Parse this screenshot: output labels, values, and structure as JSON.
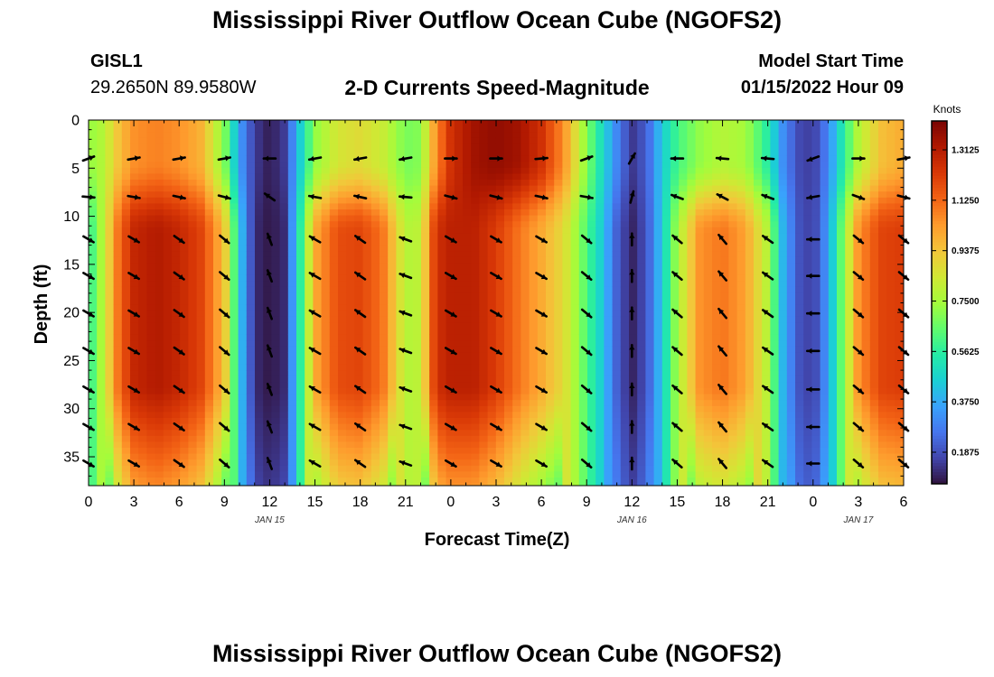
{
  "header": {
    "title": "Mississippi River Outflow Ocean Cube (NGOFS2)",
    "station_id": "GISL1",
    "station_coords": "29.2650N  89.9580W",
    "subtitle": "2-D Currents Speed-Magnitude",
    "model_start_label": "Model Start Time",
    "model_start_value": "01/15/2022 Hour 09",
    "footer_title": "Mississippi River Outflow Ocean Cube (NGOFS2)"
  },
  "colors": {
    "palette": [
      "#30123b",
      "#4145ab",
      "#4675ed",
      "#39a2fc",
      "#1bcfd4",
      "#24eca6",
      "#61fc6c",
      "#a4fc3b",
      "#d1e834",
      "#f3c63a",
      "#fe9b2d",
      "#f36315",
      "#d93806",
      "#b11901",
      "#7a0402"
    ]
  },
  "chart_data": {
    "type": "heatmap",
    "xlabel": "Forecast Time(Z)",
    "ylabel": "Depth (ft)",
    "colorbar_label": "Knots",
    "x_range_hours": [
      0,
      54
    ],
    "y_range_ft": [
      0,
      38
    ],
    "y_inverted": true,
    "x_ticks": [
      {
        "hour": 0,
        "label": "0"
      },
      {
        "hour": 3,
        "label": "3"
      },
      {
        "hour": 6,
        "label": "6"
      },
      {
        "hour": 9,
        "label": "9"
      },
      {
        "hour": 12,
        "label": "12"
      },
      {
        "hour": 15,
        "label": "15"
      },
      {
        "hour": 18,
        "label": "18"
      },
      {
        "hour": 21,
        "label": "21"
      },
      {
        "hour": 24,
        "label": "0"
      },
      {
        "hour": 27,
        "label": "3"
      },
      {
        "hour": 30,
        "label": "6"
      },
      {
        "hour": 33,
        "label": "9"
      },
      {
        "hour": 36,
        "label": "12"
      },
      {
        "hour": 39,
        "label": "15"
      },
      {
        "hour": 42,
        "label": "18"
      },
      {
        "hour": 45,
        "label": "21"
      },
      {
        "hour": 48,
        "label": "0"
      },
      {
        "hour": 51,
        "label": "3"
      },
      {
        "hour": 54,
        "label": "6"
      }
    ],
    "date_labels": [
      {
        "hour": 12,
        "label": "JAN 15"
      },
      {
        "hour": 36,
        "label": "JAN 16"
      },
      {
        "hour": 51,
        "label": "JAN 17"
      }
    ],
    "y_ticks": [
      0,
      5,
      10,
      15,
      20,
      25,
      30,
      35
    ],
    "colorbar_range": [
      0.07,
      1.42
    ],
    "colorbar_ticks": [
      {
        "value": 0.1875,
        "label": "0.1875"
      },
      {
        "value": 0.375,
        "label": "0.3750"
      },
      {
        "value": 0.5625,
        "label": "0.5625"
      },
      {
        "value": 0.75,
        "label": "0.7500"
      },
      {
        "value": 0.9375,
        "label": "0.9375"
      },
      {
        "value": 1.125,
        "label": "1.1250"
      },
      {
        "value": 1.3125,
        "label": "1.3125"
      }
    ],
    "speed_columns": [
      {
        "hour": 0,
        "surface": 0.72,
        "deep": 0.55
      },
      {
        "hour": 1,
        "surface": 0.78,
        "deep": 0.8
      },
      {
        "hour": 2,
        "surface": 0.95,
        "deep": 1.12
      },
      {
        "hour": 3,
        "surface": 1.05,
        "deep": 1.28
      },
      {
        "hour": 4.5,
        "surface": 1.08,
        "deep": 1.32
      },
      {
        "hour": 6,
        "surface": 1.05,
        "deep": 1.28
      },
      {
        "hour": 7.5,
        "surface": 0.98,
        "deep": 1.2
      },
      {
        "hour": 9,
        "surface": 0.7,
        "deep": 0.95
      },
      {
        "hour": 10,
        "surface": 0.35,
        "deep": 0.45
      },
      {
        "hour": 11,
        "surface": 0.15,
        "deep": 0.12
      },
      {
        "hour": 12,
        "surface": 0.09,
        "deep": 0.08
      },
      {
        "hour": 13,
        "surface": 0.15,
        "deep": 0.12
      },
      {
        "hour": 14,
        "surface": 0.45,
        "deep": 0.55
      },
      {
        "hour": 15,
        "surface": 0.72,
        "deep": 1.0
      },
      {
        "hour": 16.5,
        "surface": 0.85,
        "deep": 1.18
      },
      {
        "hour": 18,
        "surface": 0.88,
        "deep": 1.2
      },
      {
        "hour": 19.5,
        "surface": 0.82,
        "deep": 1.1
      },
      {
        "hour": 21,
        "surface": 0.68,
        "deep": 0.78
      },
      {
        "hour": 22,
        "surface": 0.7,
        "deep": 0.8
      },
      {
        "hour": 23,
        "surface": 1.05,
        "deep": 1.25
      },
      {
        "hour": 24,
        "surface": 1.25,
        "deep": 1.3
      },
      {
        "hour": 25.5,
        "surface": 1.35,
        "deep": 1.3
      },
      {
        "hour": 27,
        "surface": 1.38,
        "deep": 1.22
      },
      {
        "hour": 28.5,
        "surface": 1.35,
        "deep": 1.1
      },
      {
        "hour": 30,
        "surface": 1.25,
        "deep": 1.0
      },
      {
        "hour": 31.5,
        "surface": 1.05,
        "deep": 0.88
      },
      {
        "hour": 33,
        "surface": 0.7,
        "deep": 0.62
      },
      {
        "hour": 34,
        "surface": 0.5,
        "deep": 0.45
      },
      {
        "hour": 35,
        "surface": 0.3,
        "deep": 0.22
      },
      {
        "hour": 36,
        "surface": 0.14,
        "deep": 0.1
      },
      {
        "hour": 37,
        "surface": 0.22,
        "deep": 0.2
      },
      {
        "hour": 38,
        "surface": 0.45,
        "deep": 0.45
      },
      {
        "hour": 39,
        "surface": 0.6,
        "deep": 0.75
      },
      {
        "hour": 40.5,
        "surface": 0.72,
        "deep": 1.05
      },
      {
        "hour": 42,
        "surface": 0.78,
        "deep": 1.1
      },
      {
        "hour": 43.5,
        "surface": 0.75,
        "deep": 1.02
      },
      {
        "hour": 45,
        "surface": 0.55,
        "deep": 0.78
      },
      {
        "hour": 46,
        "surface": 0.32,
        "deep": 0.4
      },
      {
        "hour": 47,
        "surface": 0.18,
        "deep": 0.2
      },
      {
        "hour": 48,
        "surface": 0.15,
        "deep": 0.15
      },
      {
        "hour": 49,
        "surface": 0.3,
        "deep": 0.35
      },
      {
        "hour": 50,
        "surface": 0.55,
        "deep": 0.7
      },
      {
        "hour": 51,
        "surface": 0.78,
        "deep": 1.05
      },
      {
        "hour": 52.5,
        "surface": 0.95,
        "deep": 1.2
      },
      {
        "hour": 54,
        "surface": 1.0,
        "deep": 1.22
      }
    ],
    "vector_depths_ft": [
      4,
      8,
      12.4,
      16.2,
      20.1,
      24,
      28,
      31.9,
      35.7
    ],
    "vector_directions_deg": [
      {
        "hour": 0,
        "surface": 20,
        "deep": -30
      },
      {
        "hour": 3,
        "surface": 10,
        "deep": -30
      },
      {
        "hour": 6,
        "surface": 10,
        "deep": -35
      },
      {
        "hour": 9,
        "surface": 10,
        "deep": -40
      },
      {
        "hour": 12,
        "surface": 180,
        "deep": 110
      },
      {
        "hour": 15,
        "surface": 190,
        "deep": 150
      },
      {
        "hour": 18,
        "surface": 190,
        "deep": 145
      },
      {
        "hour": 21,
        "surface": 190,
        "deep": 160
      },
      {
        "hour": 24,
        "surface": 0,
        "deep": -30
      },
      {
        "hour": 27,
        "surface": 0,
        "deep": -30
      },
      {
        "hour": 30,
        "surface": 5,
        "deep": -30
      },
      {
        "hour": 33,
        "surface": 20,
        "deep": -40
      },
      {
        "hour": 36,
        "surface": 60,
        "deep": 90
      },
      {
        "hour": 39,
        "surface": 180,
        "deep": 140
      },
      {
        "hour": 42,
        "surface": 175,
        "deep": 130
      },
      {
        "hour": 45,
        "surface": 175,
        "deep": 145
      },
      {
        "hour": 48,
        "surface": 200,
        "deep": 180
      },
      {
        "hour": 51,
        "surface": 0,
        "deep": -40
      },
      {
        "hour": 54,
        "surface": 10,
        "deep": -40
      }
    ]
  }
}
